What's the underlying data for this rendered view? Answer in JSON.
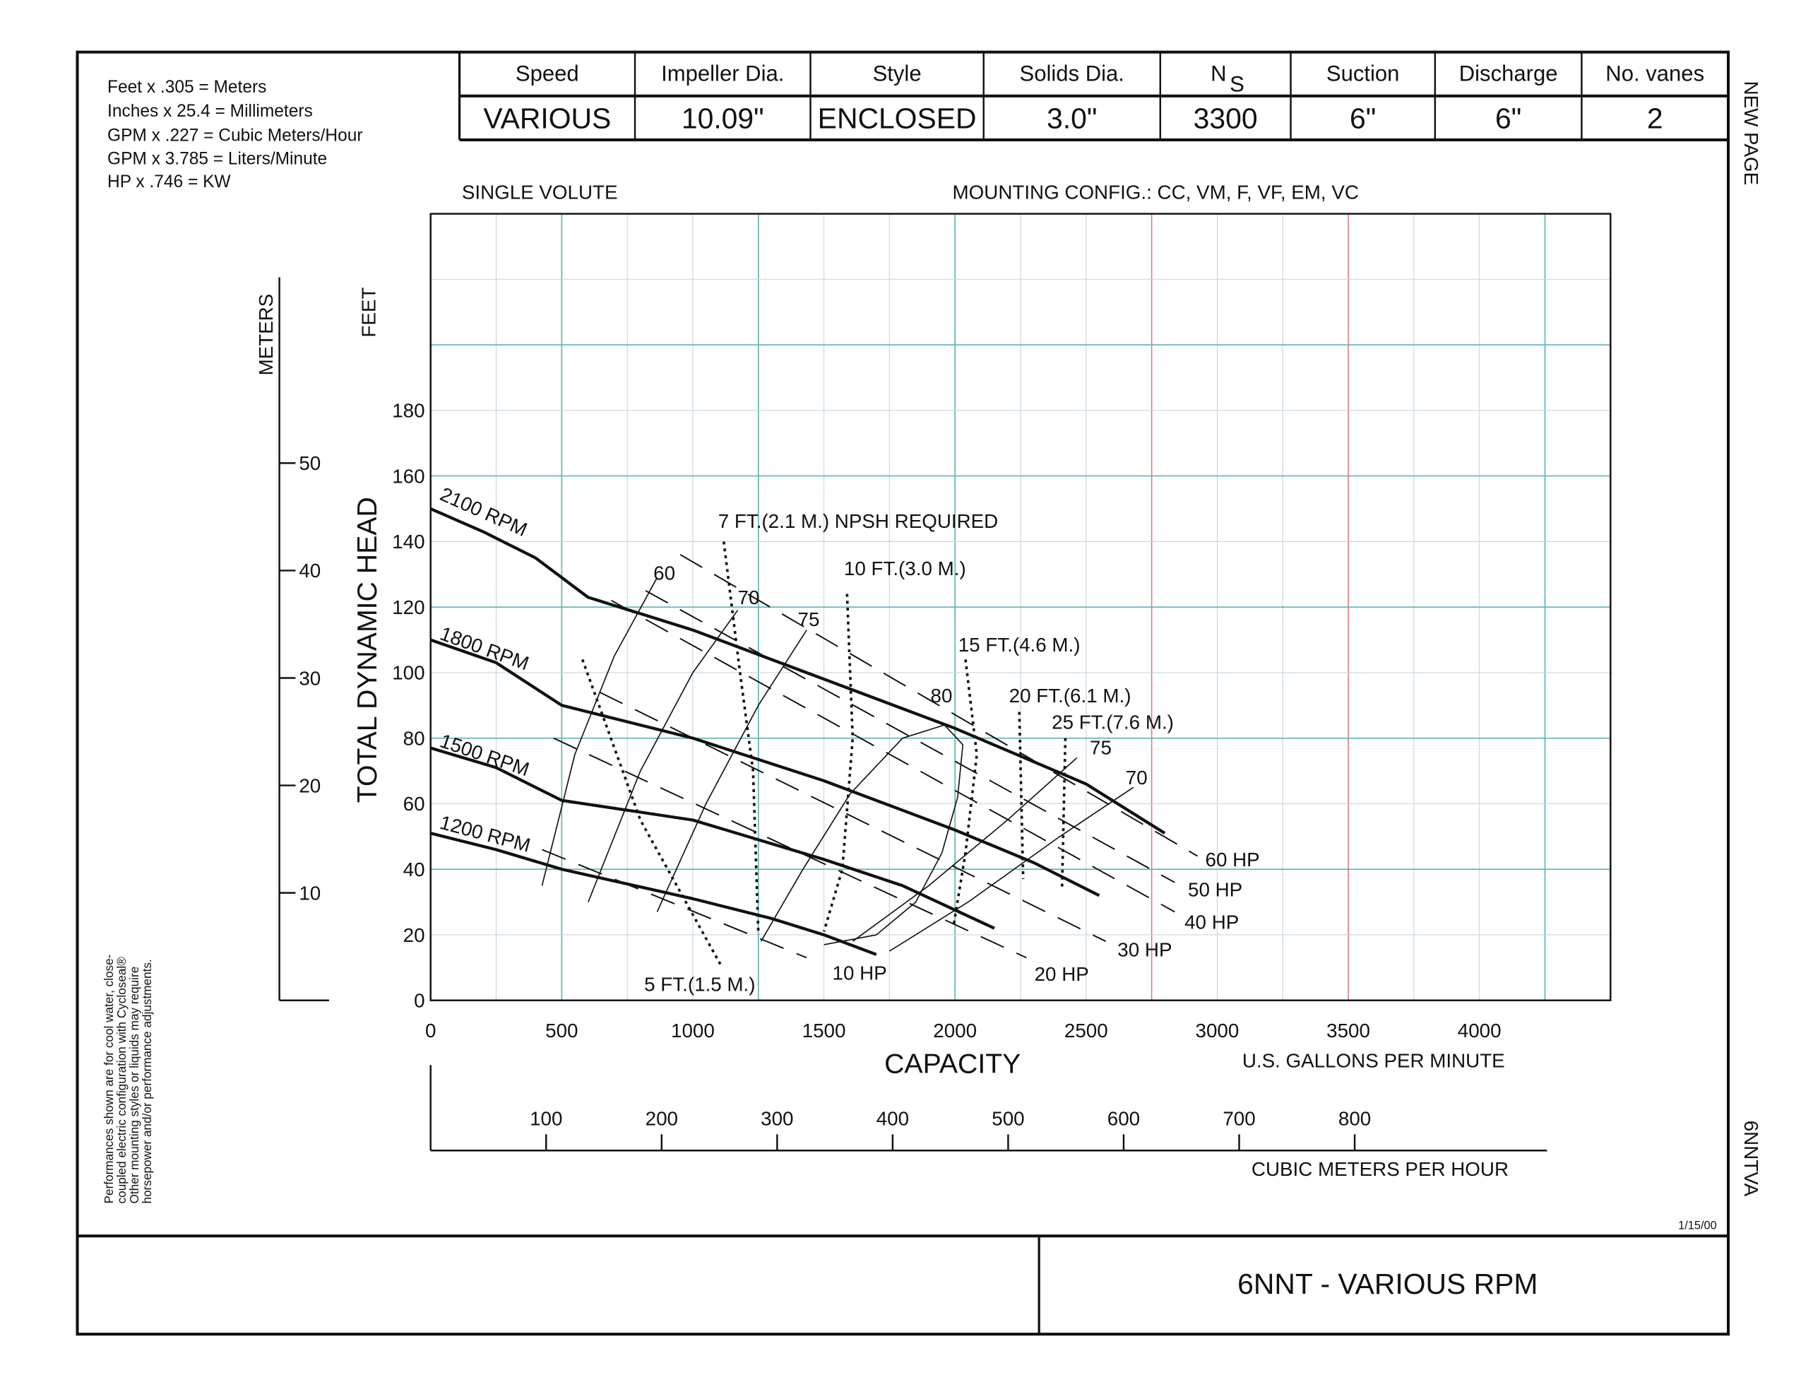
{
  "conversions": [
    "Feet x .305 = Meters",
    "Inches x 25.4 = Millimeters",
    "GPM x .227 = Cubic Meters/Hour",
    "GPM x 3.785 = Liters/Minute",
    "HP x .746 = KW"
  ],
  "spec_table": {
    "headers": [
      "Speed",
      "Impeller Dia.",
      "Style",
      "Solids Dia.",
      "N",
      "Suction",
      "Discharge",
      "No. vanes"
    ],
    "ns_subscript": "S",
    "values": [
      "VARIOUS",
      "10.09\"",
      "ENCLOSED",
      "3.0\"",
      "3300",
      "6\"",
      "6\"",
      "2"
    ]
  },
  "side_labels": {
    "top": "NEW PAGE",
    "bottom": "6NNTVA"
  },
  "disclaimer": [
    "Performances shown are for cool water, close-",
    "coupled electric configuration with Cycloseal®",
    "Other mounting styles or liquids may require",
    "horsepower and/or performance adjustments."
  ],
  "volute": "SINGLE VOLUTE",
  "mounting": "MOUNTING CONFIG.:  CC,  VM,  F,  VF,  EM,  VC",
  "date": "1/15/00",
  "title_block": {
    "title": "6NNT - VARIOUS RPM",
    "left": ""
  },
  "chart_data": {
    "type": "line",
    "title": "6NNT - VARIOUS RPM",
    "xlabel": "CAPACITY",
    "xunits": "U.S. GALLONS PER MINUTE",
    "ylabel": "TOTAL DYNAMIC HEAD",
    "yunits_feet": "FEET",
    "yunits_meters": "METERS",
    "x2label": "CUBIC METERS PER HOUR",
    "xlim": [
      0,
      4500
    ],
    "ylim": [
      0,
      240
    ],
    "grid": true,
    "x_ticks": [
      0,
      500,
      1000,
      1500,
      2000,
      2500,
      3000,
      3500,
      4000
    ],
    "y_ticks": [
      0,
      20,
      40,
      60,
      80,
      100,
      120,
      140,
      160,
      180
    ],
    "meter_ticks": [
      10,
      20,
      30,
      40,
      50
    ],
    "m3h_ticks": [
      100,
      200,
      300,
      400,
      500,
      600,
      700,
      800
    ],
    "head_curves": [
      {
        "name": "2100 RPM",
        "points": [
          [
            0,
            150
          ],
          [
            200,
            143
          ],
          [
            400,
            135
          ],
          [
            600,
            123
          ],
          [
            1000,
            113
          ],
          [
            1500,
            98
          ],
          [
            2000,
            83
          ],
          [
            2500,
            66
          ],
          [
            2800,
            51
          ]
        ]
      },
      {
        "name": "1800 RPM",
        "points": [
          [
            0,
            110
          ],
          [
            250,
            103
          ],
          [
            500,
            90
          ],
          [
            1000,
            80
          ],
          [
            1500,
            67
          ],
          [
            2000,
            52
          ],
          [
            2300,
            42
          ],
          [
            2550,
            32
          ]
        ]
      },
      {
        "name": "1500 RPM",
        "points": [
          [
            0,
            77
          ],
          [
            250,
            71
          ],
          [
            500,
            61
          ],
          [
            1000,
            55
          ],
          [
            1500,
            43
          ],
          [
            1800,
            35
          ],
          [
            2150,
            22
          ]
        ]
      },
      {
        "name": "1200 RPM",
        "points": [
          [
            0,
            51
          ],
          [
            250,
            46
          ],
          [
            500,
            40
          ],
          [
            1000,
            31
          ],
          [
            1300,
            25
          ],
          [
            1500,
            20
          ],
          [
            1700,
            14
          ]
        ]
      }
    ],
    "efficiency_curves": [
      {
        "name": "60",
        "points": [
          [
            425,
            35
          ],
          [
            550,
            75
          ],
          [
            700,
            105
          ],
          [
            864,
            129
          ]
        ]
      },
      {
        "name": "70",
        "points": [
          [
            601,
            30
          ],
          [
            800,
            70
          ],
          [
            1000,
            100
          ],
          [
            1171,
            119
          ]
        ]
      },
      {
        "name": "75",
        "points": [
          [
            864,
            27
          ],
          [
            1050,
            60
          ],
          [
            1250,
            90
          ],
          [
            1434,
            113
          ]
        ]
      },
      {
        "name": "80",
        "points": [
          [
            1260,
            18
          ],
          [
            1420,
            40
          ],
          [
            1600,
            63
          ],
          [
            1800,
            80
          ],
          [
            1960,
            84
          ],
          [
            2030,
            78
          ],
          [
            2010,
            62
          ],
          [
            1950,
            45
          ],
          [
            1850,
            30
          ],
          [
            1700,
            20
          ],
          [
            1500,
            17
          ]
        ]
      },
      {
        "name": "75",
        "points": [
          [
            1610,
            18
          ],
          [
            1900,
            35
          ],
          [
            2200,
            55
          ],
          [
            2465,
            74
          ]
        ]
      },
      {
        "name": "70",
        "points": [
          [
            1750,
            15
          ],
          [
            2050,
            30
          ],
          [
            2400,
            50
          ],
          [
            2680,
            65
          ]
        ]
      }
    ],
    "hp_lines": [
      {
        "name": "10 HP",
        "points": [
          [
            425,
            46
          ],
          [
            1434,
            13
          ]
        ]
      },
      {
        "name": "20 HP",
        "points": [
          [
            469,
            80
          ],
          [
            2272,
            13
          ]
        ]
      },
      {
        "name": "30 HP",
        "points": [
          [
            645,
            94
          ],
          [
            2575,
            18
          ]
        ]
      },
      {
        "name": "40 HP",
        "points": [
          [
            689,
            122
          ],
          [
            2838,
            27
          ]
        ]
      },
      {
        "name": "50 HP",
        "points": [
          [
            820,
            125
          ],
          [
            2838,
            36
          ]
        ]
      },
      {
        "name": "60 HP",
        "points": [
          [
            952,
            136
          ],
          [
            2925,
            44
          ]
        ]
      }
    ],
    "npsh_curves": [
      {
        "name": "5 FT.(1.5 M.)",
        "points": [
          [
            579,
            104
          ],
          [
            800,
            55
          ],
          [
            1105,
            11
          ]
        ]
      },
      {
        "name": "7 FT.(2.1 M.) NPSH REQUIRED",
        "points": [
          [
            1118,
            140
          ],
          [
            1180,
            100
          ],
          [
            1230,
            70
          ],
          [
            1250,
            20
          ]
        ]
      },
      {
        "name": "10 FT.(3.0 M.)",
        "points": [
          [
            1588,
            124
          ],
          [
            1610,
            80
          ],
          [
            1570,
            40
          ],
          [
            1500,
            21
          ]
        ]
      },
      {
        "name": "15 FT.(4.6 M.)",
        "points": [
          [
            2040,
            104
          ],
          [
            2083,
            75
          ],
          [
            2040,
            45
          ],
          [
            1995,
            23
          ]
        ]
      },
      {
        "name": "20 FT.(6.1 M.)",
        "points": [
          [
            2245,
            88
          ],
          [
            2260,
            37
          ]
        ]
      },
      {
        "name": "25 FT.(7.6 M.)",
        "points": [
          [
            2421,
            80
          ],
          [
            2408,
            34
          ]
        ]
      }
    ]
  }
}
